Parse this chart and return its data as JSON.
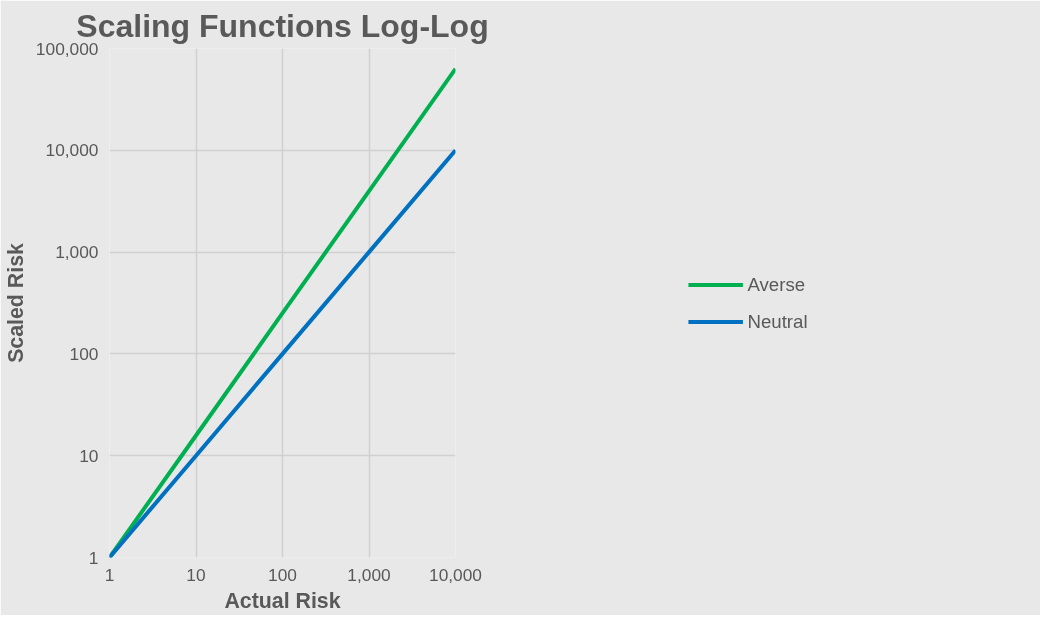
{
  "chart_data": {
    "type": "line",
    "title": "Scaling Functions Log-Log",
    "xlabel": "Actual Risk",
    "ylabel": "Scaled Risk",
    "x": [
      1,
      10,
      100,
      1000,
      10000
    ],
    "series": [
      {
        "name": "Averse",
        "color": "#00b050",
        "values": [
          1,
          15.8,
          251,
          3980,
          63100
        ]
      },
      {
        "name": "Neutral",
        "color": "#0070c0",
        "values": [
          1,
          10,
          100,
          1000,
          10000
        ]
      }
    ],
    "log": "xy",
    "xlim": [
      1,
      10000
    ],
    "ylim": [
      1,
      100000
    ],
    "xticks": [
      1,
      10,
      100,
      {
        "value": 1000,
        "label": "1,000"
      },
      {
        "value": 10000,
        "label": "10,000"
      }
    ],
    "yticks": [
      1,
      10,
      100,
      {
        "value": 1000,
        "label": "1,000"
      },
      {
        "value": 10000,
        "label": "10,000"
      },
      {
        "value": 100000,
        "label": "100,000"
      }
    ],
    "grid": true,
    "legend": "right",
    "marker": "none",
    "line_style": "solid"
  }
}
